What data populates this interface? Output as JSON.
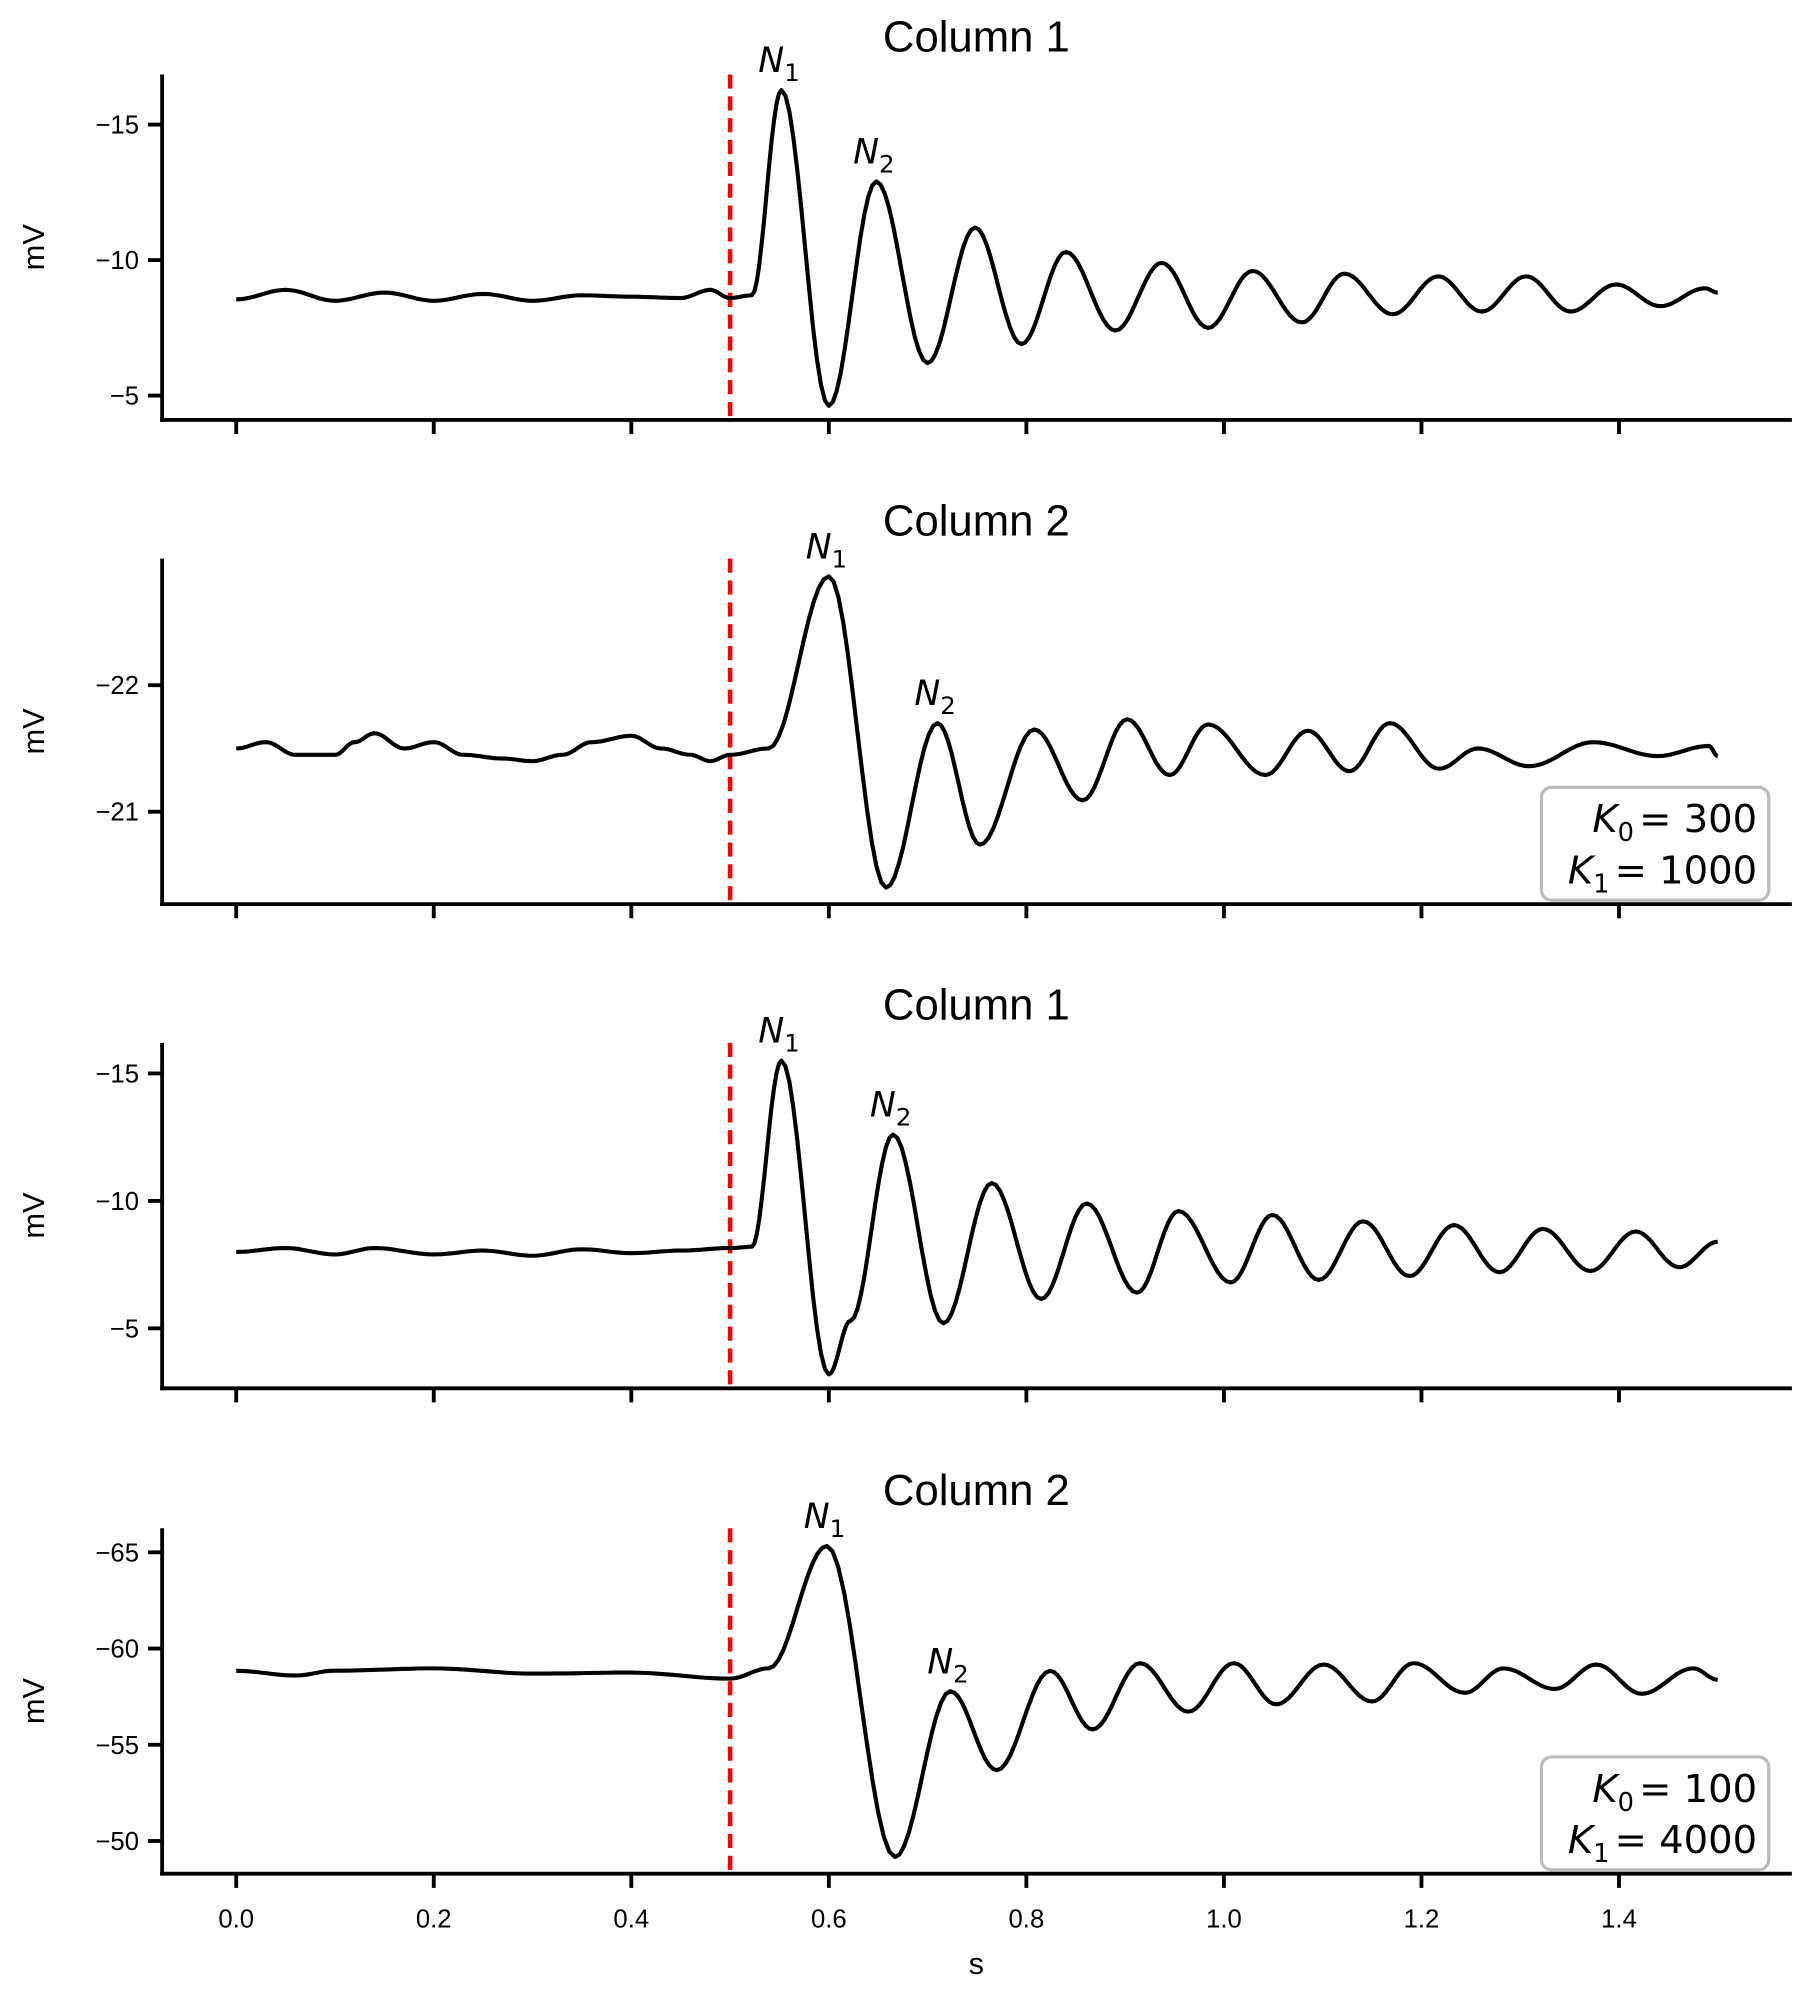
{
  "chart_data": [
    {
      "type": "line",
      "title": "Column 1",
      "ylabel": "mV",
      "xlabel": "s",
      "xlim": [
        -0.075,
        1.575
      ],
      "ylim": [
        -16.85,
        -4.1
      ],
      "y_inverted": true,
      "yticks": [
        -15,
        -10,
        -5
      ],
      "yticklabels": [
        "−15",
        "−10",
        "−5"
      ],
      "stimulus_x": 0.5,
      "stimulus_color": "#ff0000",
      "line_color": "#000000",
      "annotations": [
        {
          "label": "N",
          "sub": "1",
          "x": 0.552
        },
        {
          "label": "N",
          "sub": "2",
          "x": 0.648
        }
      ],
      "x": [
        0,
        0.05,
        0.1,
        0.15,
        0.2,
        0.25,
        0.3,
        0.35,
        0.4,
        0.45,
        0.48,
        0.5,
        0.522,
        0.552,
        0.6,
        0.648,
        0.7,
        0.748,
        0.795,
        0.84,
        0.89,
        0.937,
        0.984,
        1.029,
        1.079,
        1.122,
        1.171,
        1.217,
        1.261,
        1.306,
        1.351,
        1.397,
        1.442,
        1.487,
        1.5
      ],
      "y": [
        -8.55,
        -8.9,
        -8.5,
        -8.8,
        -8.5,
        -8.75,
        -8.5,
        -8.7,
        -8.65,
        -8.6,
        -8.9,
        -8.6,
        -8.7,
        -16.27,
        -4.62,
        -12.9,
        -6.2,
        -11.2,
        -6.9,
        -10.3,
        -7.4,
        -9.9,
        -7.5,
        -9.6,
        -7.7,
        -9.5,
        -8.0,
        -9.4,
        -8.1,
        -9.4,
        -8.1,
        -9.1,
        -8.3,
        -8.96,
        -8.8
      ]
    },
    {
      "type": "line",
      "title": "Column 2",
      "ylabel": "mV",
      "xlabel": "s",
      "xlim": [
        -0.075,
        1.575
      ],
      "ylim": [
        -23.0,
        -20.27
      ],
      "y_inverted": true,
      "yticks": [
        -22,
        -21
      ],
      "yticklabels": [
        "−22",
        "−21"
      ],
      "stimulus_x": 0.5,
      "stimulus_color": "#ff0000",
      "line_color": "#000000",
      "annotations": [
        {
          "label": "N",
          "sub": "1",
          "x": 0.6
        },
        {
          "label": "N",
          "sub": "2",
          "x": 0.71
        }
      ],
      "textbox": {
        "k0_label": "K",
        "k0_sub": "0",
        "k0_value": "= 300",
        "k1_label": "K",
        "k1_sub": "1",
        "k1_value": "= 1000"
      },
      "x": [
        0,
        0.03,
        0.06,
        0.1,
        0.12,
        0.14,
        0.17,
        0.2,
        0.23,
        0.27,
        0.3,
        0.33,
        0.36,
        0.4,
        0.43,
        0.46,
        0.48,
        0.5,
        0.539,
        0.6,
        0.658,
        0.71,
        0.753,
        0.808,
        0.857,
        0.902,
        0.945,
        0.984,
        1.042,
        1.085,
        1.127,
        1.168,
        1.218,
        1.257,
        1.309,
        1.374,
        1.439,
        1.491,
        1.5
      ],
      "y": [
        -21.5,
        -21.55,
        -21.45,
        -21.45,
        -21.55,
        -21.62,
        -21.5,
        -21.55,
        -21.45,
        -21.42,
        -21.4,
        -21.45,
        -21.55,
        -21.6,
        -21.5,
        -21.45,
        -21.4,
        -21.45,
        -21.5,
        -22.86,
        -20.4,
        -21.7,
        -20.74,
        -21.65,
        -21.09,
        -21.73,
        -21.29,
        -21.69,
        -21.29,
        -21.64,
        -21.32,
        -21.7,
        -21.34,
        -21.5,
        -21.36,
        -21.55,
        -21.44,
        -21.52,
        -21.44
      ]
    },
    {
      "type": "line",
      "title": "Column 1",
      "ylabel": "mV",
      "xlabel": "s",
      "xlim": [
        -0.075,
        1.575
      ],
      "ylim": [
        -16.2,
        -2.65
      ],
      "y_inverted": true,
      "yticks": [
        -15,
        -10,
        -5
      ],
      "yticklabels": [
        "−15",
        "−10",
        "−5"
      ],
      "stimulus_x": 0.5,
      "stimulus_color": "#ff0000",
      "line_color": "#000000",
      "annotations": [
        {
          "label": "N",
          "sub": "1",
          "x": 0.552
        },
        {
          "label": "N",
          "sub": "2",
          "x": 0.665
        }
      ],
      "x": [
        0,
        0.05,
        0.1,
        0.14,
        0.2,
        0.25,
        0.3,
        0.35,
        0.4,
        0.45,
        0.5,
        0.522,
        0.552,
        0.6,
        0.622,
        0.665,
        0.716,
        0.765,
        0.815,
        0.861,
        0.912,
        0.954,
        1.007,
        1.049,
        1.096,
        1.141,
        1.188,
        1.233,
        1.279,
        1.323,
        1.371,
        1.417,
        1.461,
        1.5
      ],
      "y": [
        -8.0,
        -8.15,
        -7.9,
        -8.15,
        -7.9,
        -8.05,
        -7.85,
        -8.1,
        -7.95,
        -8.05,
        -8.15,
        -8.2,
        -15.5,
        -3.2,
        -5.3,
        -12.6,
        -5.2,
        -10.7,
        -6.15,
        -9.9,
        -6.4,
        -9.6,
        -6.8,
        -9.45,
        -6.9,
        -9.2,
        -7.05,
        -9.05,
        -7.2,
        -8.9,
        -7.25,
        -8.8,
        -7.4,
        -8.4
      ]
    },
    {
      "type": "line",
      "title": "Column 2",
      "ylabel": "mV",
      "xlabel": "s",
      "xlim": [
        -0.075,
        1.575
      ],
      "ylim": [
        -66.25,
        -48.3
      ],
      "y_inverted": true,
      "yticks": [
        -65,
        -60,
        -55,
        -50
      ],
      "yticklabels": [
        "−65",
        "−60",
        "−55",
        "−50"
      ],
      "xticks": [
        0.0,
        0.2,
        0.4,
        0.6,
        0.8,
        1.0,
        1.2,
        1.4
      ],
      "xticklabels": [
        "0.0",
        "0.2",
        "0.4",
        "0.6",
        "0.8",
        "1.0",
        "1.2",
        "1.4"
      ],
      "stimulus_x": 0.5,
      "stimulus_color": "#ff0000",
      "line_color": "#000000",
      "annotations": [
        {
          "label": "N",
          "sub": "1",
          "x": 0.598
        },
        {
          "label": "N",
          "sub": "2",
          "x": 0.723
        }
      ],
      "textbox": {
        "k0_label": "K",
        "k0_sub": "0",
        "k0_value": "= 100",
        "k1_label": "K",
        "k1_sub": "1",
        "k1_value": "= 4000"
      },
      "x": [
        0,
        0.06,
        0.1,
        0.2,
        0.3,
        0.4,
        0.5,
        0.539,
        0.598,
        0.667,
        0.723,
        0.77,
        0.824,
        0.867,
        0.915,
        0.964,
        1.01,
        1.053,
        1.101,
        1.15,
        1.192,
        1.244,
        1.283,
        1.335,
        1.377,
        1.423,
        1.475,
        1.5
      ],
      "y": [
        -58.84,
        -58.6,
        -58.85,
        -58.97,
        -58.7,
        -58.75,
        -58.44,
        -58.97,
        -65.33,
        -49.17,
        -57.78,
        -53.68,
        -58.84,
        -55.8,
        -59.24,
        -56.72,
        -59.24,
        -57.1,
        -59.17,
        -57.25,
        -59.24,
        -57.7,
        -58.97,
        -57.9,
        -59.17,
        -57.65,
        -58.97,
        -58.38
      ]
    }
  ]
}
